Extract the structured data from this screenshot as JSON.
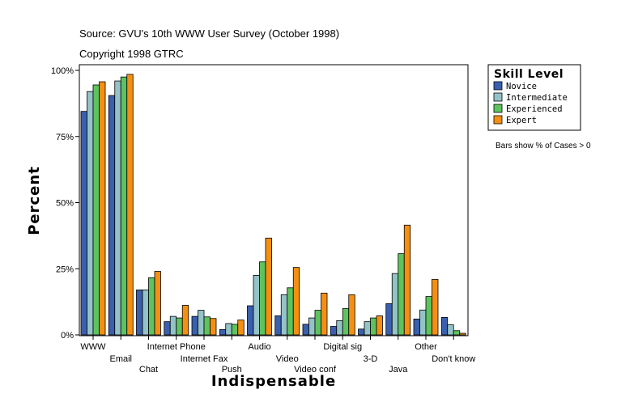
{
  "header": {
    "source": "Source: GVU's 10th WWW User Survey (October 1998)",
    "copyright": "Copyright 1998 GTRC"
  },
  "footnote": "Bars show % of Cases > 0",
  "chart_data": {
    "type": "bar",
    "title": "",
    "xlabel": "Indispensable",
    "ylabel": "Percent",
    "ylim": [
      0,
      100
    ],
    "yticks": [
      0,
      25,
      50,
      75,
      100
    ],
    "ytick_labels": [
      "0%",
      "25%",
      "50%",
      "75%",
      "100%"
    ],
    "categories": [
      "WWW",
      "Email",
      "Chat",
      "Internet Phone",
      "Internet Fax",
      "Push",
      "Audio",
      "Video",
      "Video conf",
      "Digital sig",
      "3-D",
      "Java",
      "Other",
      "Don't know"
    ],
    "legend": {
      "title": "Skill Level",
      "position": "right"
    },
    "series": [
      {
        "name": "Novice",
        "color": "#3a5fae",
        "values": [
          84.5,
          90.5,
          17,
          5,
          7,
          2,
          11,
          7.2,
          4,
          3.2,
          2.2,
          11.8,
          6,
          6.6
        ]
      },
      {
        "name": "Intermediate",
        "color": "#93c3c6",
        "values": [
          92,
          96,
          17,
          7,
          9.3,
          4.3,
          22.5,
          15.2,
          6.4,
          5.4,
          5,
          23.2,
          9.4,
          3.8
        ]
      },
      {
        "name": "Experienced",
        "color": "#5ec35e",
        "values": [
          94.5,
          97.5,
          21.6,
          6.4,
          6.8,
          4,
          27.6,
          17.8,
          9.3,
          10,
          6.4,
          30.7,
          14.5,
          1.6
        ]
      },
      {
        "name": "Expert",
        "color": "#f58f12",
        "values": [
          95.7,
          98.5,
          24,
          11.2,
          6.2,
          5.6,
          36.6,
          25.5,
          15.8,
          15.2,
          7.2,
          41.5,
          21,
          0.6
        ]
      }
    ]
  }
}
